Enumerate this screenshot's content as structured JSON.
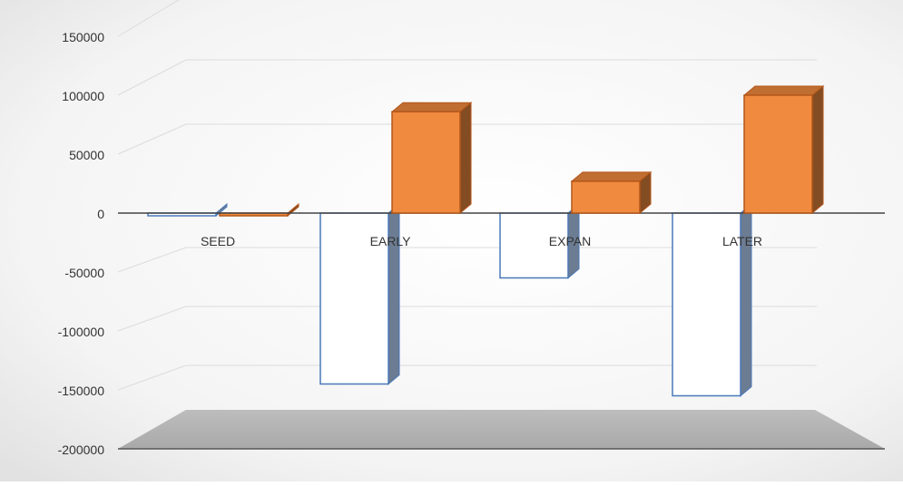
{
  "chart_data": {
    "type": "bar",
    "style": "3d-clustered-column",
    "categories": [
      "SEED",
      "EARLY",
      "EXPAN",
      "LATER"
    ],
    "series": [
      {
        "color": "#ffffff",
        "edge": "#4a78b8",
        "values": [
          -2000,
          -145000,
          -55000,
          -155000
        ]
      },
      {
        "color": "#f08a3e",
        "edge": "#b4561a",
        "values": [
          -1500,
          86000,
          27000,
          100000
        ]
      }
    ],
    "ylim": [
      -200000,
      150000
    ],
    "yticks": [
      150000,
      100000,
      50000,
      0,
      -50000,
      -100000,
      -150000,
      -200000
    ],
    "ytick_labels": [
      "150000",
      "100000",
      "50000",
      "0",
      "-50000",
      "-100000",
      "-150000",
      "-200000"
    ],
    "grid": true,
    "legend": "none"
  }
}
